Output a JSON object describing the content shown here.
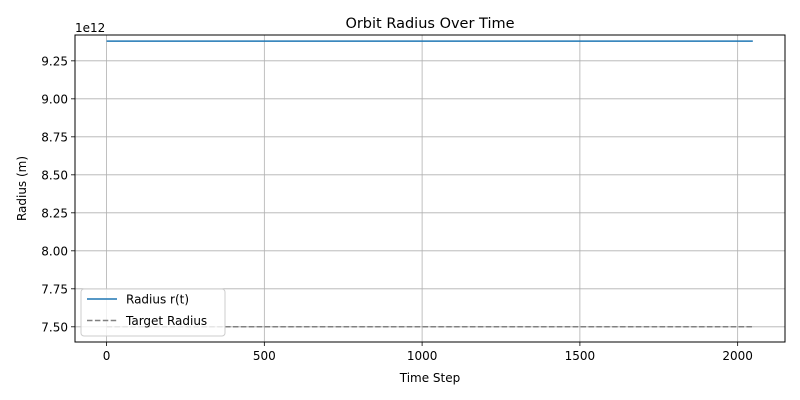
{
  "chart_data": {
    "type": "line",
    "title": "Orbit Radius Over Time",
    "xlabel": "Time Step",
    "ylabel": "Radius (m)",
    "y_offset_text": "1e12",
    "y_scale_factor": 1000000000000.0,
    "xlim": [
      -100,
      2150
    ],
    "ylim": [
      7400000000000.0,
      9420000000000.0
    ],
    "xticks": [
      0,
      500,
      1000,
      1500,
      2000
    ],
    "xtick_labels": [
      "0",
      "500",
      "1000",
      "1500",
      "2000"
    ],
    "yticks": [
      7500000000000.0,
      7750000000000.0,
      8000000000000.0,
      8250000000000.0,
      8500000000000.0,
      8750000000000.0,
      9000000000000.0,
      9250000000000.0
    ],
    "ytick_labels": [
      "7.50",
      "7.75",
      "8.00",
      "8.25",
      "8.50",
      "8.75",
      "9.00",
      "9.25"
    ],
    "grid": true,
    "legend_position": "lower-left",
    "series": [
      {
        "name": "Radius r(t)",
        "style": "solid",
        "color": "#1f77b4",
        "x": [
          0,
          2048
        ],
        "y": [
          9380000000000.0,
          9380000000000.0
        ]
      },
      {
        "name": "Target Radius",
        "style": "dashed",
        "color": "#808080",
        "x": [
          0,
          2048
        ],
        "y": [
          7500000000000.0,
          7500000000000.0
        ]
      }
    ]
  }
}
